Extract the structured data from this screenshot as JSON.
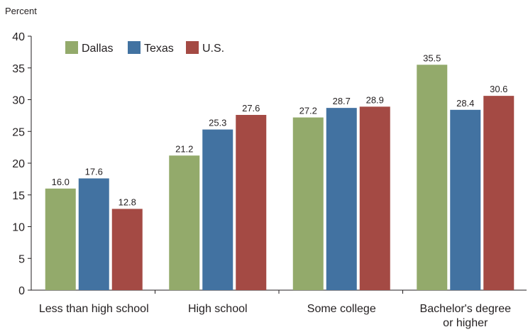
{
  "chart_data": {
    "type": "bar",
    "ylabel": "Percent",
    "ylim": [
      0,
      40
    ],
    "yticks": [
      0,
      5,
      10,
      15,
      20,
      25,
      30,
      35,
      40
    ],
    "categories": [
      [
        "Less than high school"
      ],
      [
        "High school"
      ],
      [
        "Some college"
      ],
      [
        "Bachelor's degree",
        "or higher"
      ]
    ],
    "series": [
      {
        "name": "Dallas",
        "color": "#93aa6b",
        "values": [
          16.0,
          21.2,
          27.2,
          35.5
        ],
        "labels": [
          "16.0",
          "21.2",
          "27.2",
          "35.5"
        ]
      },
      {
        "name": "Texas",
        "color": "#4272a1",
        "values": [
          17.6,
          25.3,
          28.7,
          28.4
        ],
        "labels": [
          "17.6",
          "25.3",
          "28.7",
          "28.4"
        ]
      },
      {
        "name": "U.S.",
        "color": "#a44a44",
        "values": [
          12.8,
          27.6,
          28.9,
          30.6
        ],
        "labels": [
          "12.8",
          "27.6",
          "28.9",
          "30.6"
        ]
      }
    ],
    "legend": "top-left",
    "grid": false
  }
}
